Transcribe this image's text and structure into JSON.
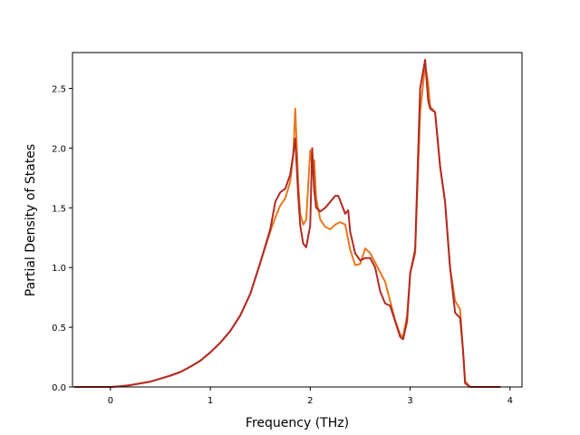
{
  "chart_data": {
    "type": "line",
    "title": "",
    "xlabel": "Frequency (THz)",
    "ylabel": "Partial Density of States",
    "xlim": [
      -0.38,
      4.12
    ],
    "ylim": [
      0.0,
      2.8
    ],
    "xticks": [
      0,
      1,
      2,
      3,
      4
    ],
    "yticks": [
      0.0,
      0.5,
      1.0,
      1.5,
      2.0,
      2.5
    ],
    "xtick_labels": [
      "0",
      "1",
      "2",
      "3",
      "4"
    ],
    "ytick_labels": [
      "0.0",
      "0.5",
      "1.0",
      "1.5",
      "2.0",
      "2.5"
    ],
    "grid": false,
    "legend": "none",
    "series": [
      {
        "color": "#e8781e",
        "x": [
          -0.36,
          0.0,
          0.1,
          0.2,
          0.3,
          0.4,
          0.5,
          0.6,
          0.7,
          0.8,
          0.9,
          1.0,
          1.1,
          1.2,
          1.3,
          1.4,
          1.5,
          1.6,
          1.65,
          1.7,
          1.75,
          1.8,
          1.83,
          1.85,
          1.88,
          1.9,
          1.93,
          1.96,
          2.0,
          2.02,
          2.04,
          2.06,
          2.1,
          2.15,
          2.2,
          2.25,
          2.3,
          2.35,
          2.4,
          2.45,
          2.5,
          2.55,
          2.6,
          2.65,
          2.7,
          2.75,
          2.8,
          2.85,
          2.9,
          2.93,
          2.97,
          3.0,
          3.05,
          3.1,
          3.15,
          3.18,
          3.2,
          3.25,
          3.3,
          3.35,
          3.4,
          3.45,
          3.5,
          3.53,
          3.55,
          3.6,
          3.9
        ],
        "y": [
          0.0,
          0.0,
          0.005,
          0.015,
          0.03,
          0.045,
          0.07,
          0.095,
          0.125,
          0.17,
          0.22,
          0.29,
          0.37,
          0.47,
          0.6,
          0.78,
          1.04,
          1.3,
          1.42,
          1.52,
          1.58,
          1.72,
          1.95,
          2.33,
          1.7,
          1.45,
          1.36,
          1.4,
          1.98,
          1.85,
          1.9,
          1.58,
          1.4,
          1.34,
          1.32,
          1.36,
          1.38,
          1.36,
          1.15,
          1.02,
          1.03,
          1.16,
          1.12,
          1.04,
          0.96,
          0.88,
          0.72,
          0.56,
          0.44,
          0.42,
          0.6,
          0.95,
          1.12,
          2.3,
          2.7,
          2.55,
          2.35,
          2.3,
          1.85,
          1.55,
          1.0,
          0.72,
          0.65,
          0.3,
          0.05,
          0.0,
          0.0
        ]
      },
      {
        "color": "#b22a24",
        "x": [
          -0.36,
          0.0,
          0.1,
          0.2,
          0.3,
          0.4,
          0.5,
          0.6,
          0.7,
          0.8,
          0.9,
          1.0,
          1.1,
          1.2,
          1.3,
          1.4,
          1.5,
          1.6,
          1.65,
          1.7,
          1.75,
          1.8,
          1.83,
          1.85,
          1.88,
          1.9,
          1.93,
          1.96,
          2.0,
          2.02,
          2.04,
          2.06,
          2.1,
          2.15,
          2.2,
          2.25,
          2.28,
          2.3,
          2.35,
          2.38,
          2.4,
          2.45,
          2.5,
          2.55,
          2.6,
          2.65,
          2.7,
          2.75,
          2.8,
          2.85,
          2.9,
          2.93,
          2.97,
          3.0,
          3.05,
          3.1,
          3.15,
          3.18,
          3.2,
          3.25,
          3.3,
          3.35,
          3.4,
          3.45,
          3.5,
          3.53,
          3.55,
          3.6,
          3.9
        ],
        "y": [
          0.0,
          0.0,
          0.005,
          0.015,
          0.03,
          0.045,
          0.07,
          0.095,
          0.125,
          0.17,
          0.22,
          0.29,
          0.37,
          0.47,
          0.6,
          0.78,
          1.04,
          1.32,
          1.55,
          1.63,
          1.66,
          1.78,
          1.95,
          2.08,
          1.6,
          1.35,
          1.2,
          1.17,
          1.35,
          2.0,
          1.65,
          1.5,
          1.47,
          1.5,
          1.55,
          1.6,
          1.6,
          1.56,
          1.45,
          1.48,
          1.3,
          1.12,
          1.06,
          1.08,
          1.08,
          1.0,
          0.8,
          0.7,
          0.68,
          0.55,
          0.42,
          0.4,
          0.55,
          0.95,
          1.15,
          2.5,
          2.74,
          2.4,
          2.33,
          2.3,
          1.85,
          1.55,
          1.0,
          0.62,
          0.58,
          0.3,
          0.03,
          0.0,
          0.0
        ]
      }
    ]
  }
}
